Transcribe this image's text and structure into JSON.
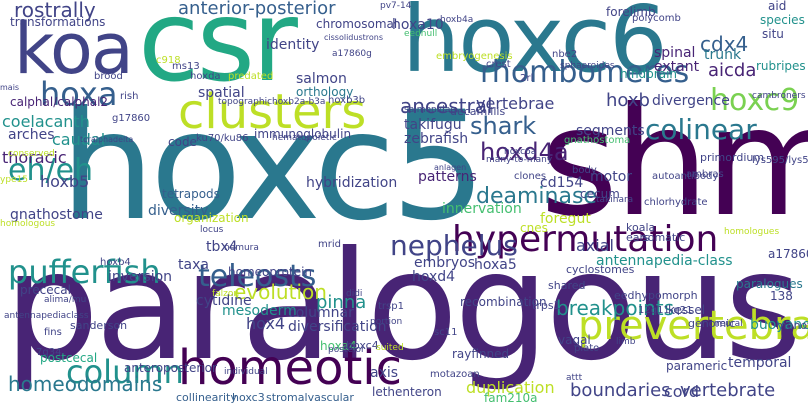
{
  "words": [
    "paralogous",
    "hoxc5",
    "shm",
    "hoxc6",
    "csr",
    "koa",
    "clusters",
    "hypermutation",
    "homeotic",
    "pufferfish",
    "column",
    "prevertebral",
    "hoxa",
    "eh/eh",
    "teleosts",
    "nephelus",
    "rhombomeres",
    "colinear",
    "shark",
    "hoxd4a",
    "hoxc9",
    "cdx4",
    "rostrally",
    "anterior-posterior",
    "homeodomains",
    "breakpoints",
    "boundaries",
    "vertebrate",
    "evolution",
    "pinna",
    "deaminase",
    "ancestral",
    "vertebrae",
    "hoxb",
    "coelacanth",
    "caudal",
    "thoracic",
    "hoxb5",
    "gnathostome",
    "arches",
    "calphal/calphal2",
    "transformations",
    "identity",
    "salmon",
    "orthology",
    "spatial",
    "hoxa10",
    "aicda",
    "trunk",
    "spinal",
    "extant",
    "forelimb",
    "species",
    "rubripes",
    "divergence",
    "takifugu",
    "zebrafish",
    "segments",
    "innervation",
    "patterns",
    "cd154",
    "axial",
    "antennapedia-class",
    "hoxa5",
    "embryos",
    "hoxd4",
    "diversification",
    "columnar",
    "mesoderm",
    "hox4",
    "cytidine",
    "taxa",
    "inversion",
    "homeoprotein",
    "immunoglobulin",
    "diversity",
    "tetrapods",
    "organization",
    "tbx4",
    "hybridization",
    "chromosomal",
    "cnes",
    "foregut",
    "motor",
    "paralogues",
    "buoyancy",
    "axis",
    "duplication",
    "recombination",
    "rayfinned",
    "temporal",
    "cord",
    "lethenteron",
    "fam210a",
    "sanderson",
    "prececal",
    "postcecal",
    "anteroposterior",
    "stromalvascular",
    "collinearity",
    "hoxc3",
    "kessel",
    "genomic",
    "parameric",
    "monofunctional",
    "138",
    "a17860",
    "mrid",
    "vagal",
    "trps1",
    "shared",
    "cyclostomes",
    "koala",
    "somatic",
    "ears",
    "hoxa4",
    "hoxc4",
    "hox4",
    "hoxd4",
    "hoxb4",
    "fins",
    "7q34",
    "crest",
    "2rl",
    "nbe2",
    "clones",
    "hindbrain",
    "primordium",
    "polycomb",
    "cd33",
    "aid",
    "situ",
    "primers",
    "ms13",
    "hoxda",
    "predated",
    "rish",
    "brood",
    "hoxb3b",
    "hoxb2a-b3a",
    "topographic",
    "salmonidae",
    "decamillis",
    "gnathostoma",
    "code",
    "g17860",
    "ku70/ku86",
    "hematopoietic",
    "conserved",
    "ype15",
    "many-to-many",
    "tcralphadelta",
    "ambras",
    "lys595/lys596",
    "eedhypomorph",
    "autoantibody",
    "chlorhydrate",
    "hoxb4a",
    "pv7-14",
    "eednull",
    "cissolidustrons",
    "a17860g",
    "sphaeroides",
    "lxx",
    "cambroners",
    "locus",
    "nomura",
    "falzon",
    "homologues",
    "alima/mu",
    "embryogenesis",
    "12q11-q21",
    "sc11",
    "plato",
    "limb",
    "attt",
    "motazoan",
    "portion",
    "posteior",
    "individual",
    "neural",
    "suited",
    "didi",
    "c16476r",
    "antennapediaclass",
    "surface",
    "trsp1",
    "gameness",
    "p15q34",
    "takihara",
    "anlagen",
    "morph",
    "body",
    "cecum",
    "hoxc6a",
    "c918",
    "mais",
    "homologous"
  ]
}
